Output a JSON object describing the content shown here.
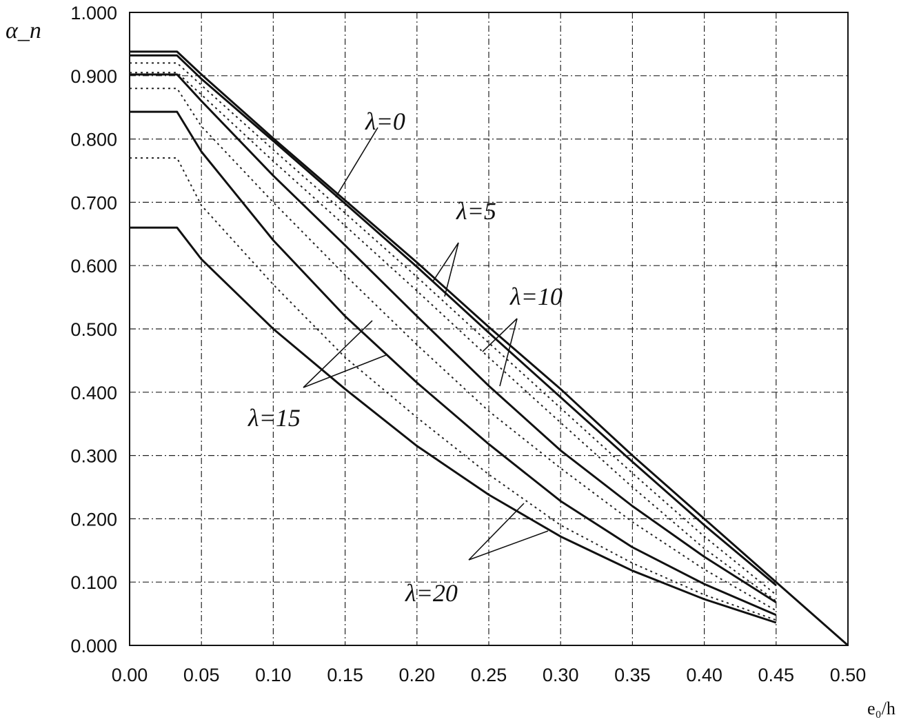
{
  "chart_data": {
    "type": "line",
    "ylabel": "α_n",
    "xlabel": "e₀/h",
    "xlim": [
      0,
      0.5
    ],
    "ylim": [
      0,
      1.0
    ],
    "grid": true,
    "x_ticks": [
      "0.00",
      "0.05",
      "0.10",
      "0.15",
      "0.20",
      "0.25",
      "0.30",
      "0.35",
      "0.40",
      "0.45",
      "0.50"
    ],
    "y_ticks": [
      "0.000",
      "0.100",
      "0.200",
      "0.300",
      "0.400",
      "0.500",
      "0.600",
      "0.700",
      "0.800",
      "0.900",
      "1.000"
    ],
    "annotations": [
      "λ=0",
      "λ=5",
      "λ=10",
      "λ=15",
      "λ=20"
    ],
    "series": [
      {
        "style": "solid",
        "x": [
          0,
          0.033,
          0.05,
          0.1,
          0.15,
          0.2,
          0.25,
          0.3,
          0.35,
          0.4,
          0.45,
          0.5
        ],
        "y": [
          0.938,
          0.938,
          0.902,
          0.801,
          0.703,
          0.605,
          0.503,
          0.405,
          0.3,
          0.2,
          0.1,
          0.0
        ]
      },
      {
        "style": "solid",
        "x": [
          0,
          0.033,
          0.05,
          0.1,
          0.15,
          0.2,
          0.25,
          0.3,
          0.35,
          0.4,
          0.45
        ],
        "y": [
          0.932,
          0.932,
          0.895,
          0.797,
          0.698,
          0.598,
          0.494,
          0.392,
          0.29,
          0.19,
          0.095
        ]
      },
      {
        "style": "dotted",
        "x": [
          0,
          0.033,
          0.05,
          0.1,
          0.15,
          0.2,
          0.25,
          0.3,
          0.35,
          0.4,
          0.45
        ],
        "y": [
          0.92,
          0.92,
          0.885,
          0.783,
          0.683,
          0.582,
          0.478,
          0.375,
          0.272,
          0.172,
          0.08
        ]
      },
      {
        "style": "dotted",
        "x": [
          0,
          0.033,
          0.05,
          0.1,
          0.15,
          0.2,
          0.25,
          0.3,
          0.35,
          0.4,
          0.45
        ],
        "y": [
          0.905,
          0.905,
          0.87,
          0.765,
          0.663,
          0.56,
          0.455,
          0.352,
          0.25,
          0.153,
          0.07
        ]
      },
      {
        "style": "solid",
        "x": [
          0,
          0.033,
          0.05,
          0.1,
          0.15,
          0.2,
          0.25,
          0.3,
          0.35,
          0.4,
          0.45
        ],
        "y": [
          0.902,
          0.902,
          0.86,
          0.742,
          0.632,
          0.52,
          0.41,
          0.308,
          0.22,
          0.14,
          0.068
        ]
      },
      {
        "style": "dotted",
        "x": [
          0,
          0.033,
          0.05,
          0.1,
          0.15,
          0.2,
          0.25,
          0.3,
          0.35,
          0.4,
          0.45
        ],
        "y": [
          0.88,
          0.88,
          0.82,
          0.7,
          0.585,
          0.475,
          0.37,
          0.28,
          0.195,
          0.12,
          0.055
        ]
      },
      {
        "style": "solid",
        "x": [
          0,
          0.033,
          0.05,
          0.1,
          0.15,
          0.2,
          0.25,
          0.3,
          0.35,
          0.4,
          0.45
        ],
        "y": [
          0.843,
          0.843,
          0.78,
          0.64,
          0.52,
          0.415,
          0.318,
          0.228,
          0.155,
          0.097,
          0.048
        ]
      },
      {
        "style": "dotted",
        "x": [
          0,
          0.033,
          0.05,
          0.1,
          0.15,
          0.2,
          0.25,
          0.3,
          0.35,
          0.4,
          0.45
        ],
        "y": [
          0.77,
          0.77,
          0.695,
          0.57,
          0.455,
          0.36,
          0.27,
          0.19,
          0.13,
          0.08,
          0.04
        ]
      },
      {
        "style": "solid",
        "x": [
          0,
          0.033,
          0.05,
          0.1,
          0.15,
          0.2,
          0.25,
          0.3,
          0.35,
          0.4,
          0.45
        ],
        "y": [
          0.66,
          0.66,
          0.61,
          0.5,
          0.405,
          0.315,
          0.238,
          0.172,
          0.118,
          0.073,
          0.036
        ]
      }
    ]
  }
}
